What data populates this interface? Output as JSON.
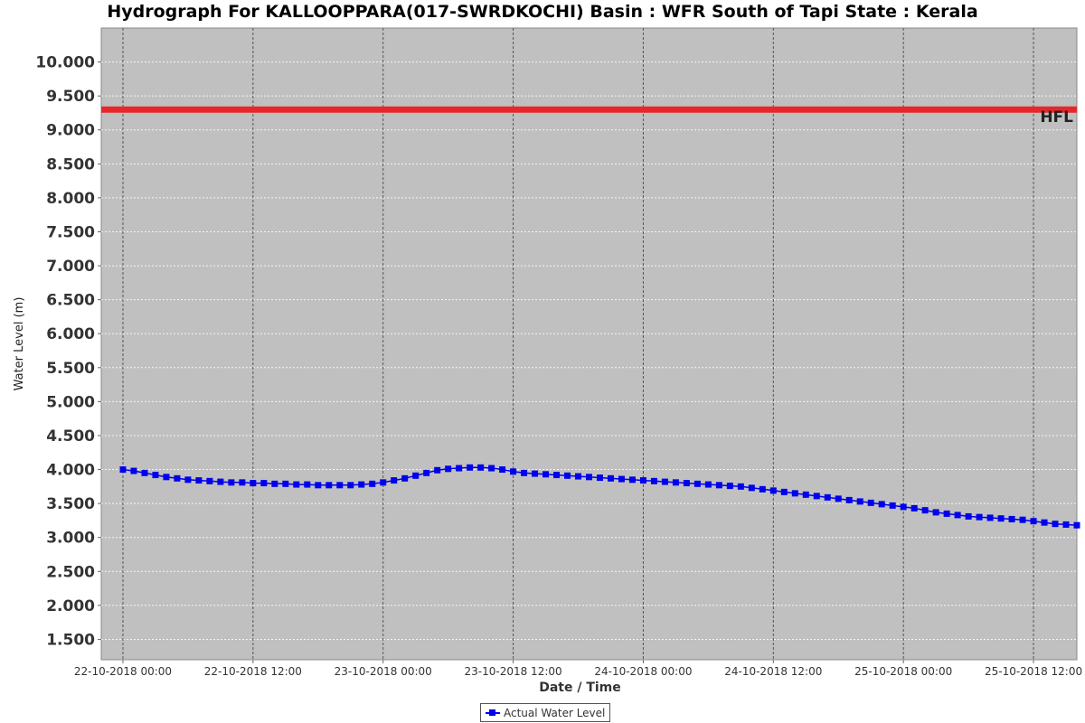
{
  "colors": {
    "plot_bg": "#c0c0c0",
    "series": "#0000ee",
    "hfl": "#e8262a",
    "grid_h": "#ffffff",
    "grid_v": "#555555"
  },
  "chart_data": {
    "type": "line",
    "title": "Hydrograph For KALLOOPPARA(017-SWRDKOCHI) Basin : WFR South of Tapi State : Kerala",
    "xlabel": "Date / Time",
    "ylabel": "Water Level (m)",
    "ylim": [
      1.2,
      10.5
    ],
    "xlim": [
      "2018-10-21 22:00",
      "2018-10-25 16:00"
    ],
    "yticks": [
      1.5,
      2.0,
      2.5,
      3.0,
      3.5,
      4.0,
      4.5,
      5.0,
      5.5,
      6.0,
      6.5,
      7.0,
      7.5,
      8.0,
      8.5,
      9.0,
      9.5,
      10.0
    ],
    "ytick_labels": [
      "1.500",
      "2.000",
      "2.500",
      "3.000",
      "3.500",
      "4.000",
      "4.500",
      "5.000",
      "5.500",
      "6.000",
      "6.500",
      "7.000",
      "7.500",
      "8.000",
      "8.500",
      "9.000",
      "9.500",
      "10.000"
    ],
    "xticks": [
      "2018-10-22 00:00",
      "2018-10-22 12:00",
      "2018-10-23 00:00",
      "2018-10-23 12:00",
      "2018-10-24 00:00",
      "2018-10-24 12:00",
      "2018-10-25 00:00",
      "2018-10-25 12:00"
    ],
    "xtick_labels": [
      "22-10-2018 00:00",
      "22-10-2018 12:00",
      "23-10-2018 00:00",
      "23-10-2018 12:00",
      "24-10-2018 00:00",
      "24-10-2018 12:00",
      "25-10-2018 00:00",
      "25-10-2018 12:00"
    ],
    "grid": true,
    "legend": {
      "position": "bottom",
      "entries": [
        "Actual Water Level"
      ]
    },
    "reference_line": {
      "label": "HFL",
      "value": 9.3
    },
    "series": [
      {
        "name": "Actual Water Level",
        "x_start": "2018-10-22 00:00",
        "x_step_hours": 1,
        "values": [
          4.0,
          3.98,
          3.95,
          3.92,
          3.89,
          3.87,
          3.85,
          3.84,
          3.83,
          3.82,
          3.81,
          3.81,
          3.8,
          3.8,
          3.79,
          3.79,
          3.78,
          3.78,
          3.77,
          3.77,
          3.77,
          3.77,
          3.78,
          3.79,
          3.81,
          3.84,
          3.87,
          3.91,
          3.95,
          3.99,
          4.01,
          4.02,
          4.03,
          4.03,
          4.02,
          4.0,
          3.97,
          3.95,
          3.94,
          3.93,
          3.92,
          3.91,
          3.9,
          3.89,
          3.88,
          3.87,
          3.86,
          3.85,
          3.84,
          3.83,
          3.82,
          3.81,
          3.8,
          3.79,
          3.78,
          3.77,
          3.76,
          3.75,
          3.73,
          3.71,
          3.69,
          3.67,
          3.65,
          3.63,
          3.61,
          3.59,
          3.57,
          3.55,
          3.53,
          3.51,
          3.49,
          3.47,
          3.45,
          3.43,
          3.4,
          3.37,
          3.35,
          3.33,
          3.31,
          3.3,
          3.29,
          3.28,
          3.27,
          3.26,
          3.24,
          3.22,
          3.2,
          3.19,
          3.18
        ]
      }
    ]
  }
}
